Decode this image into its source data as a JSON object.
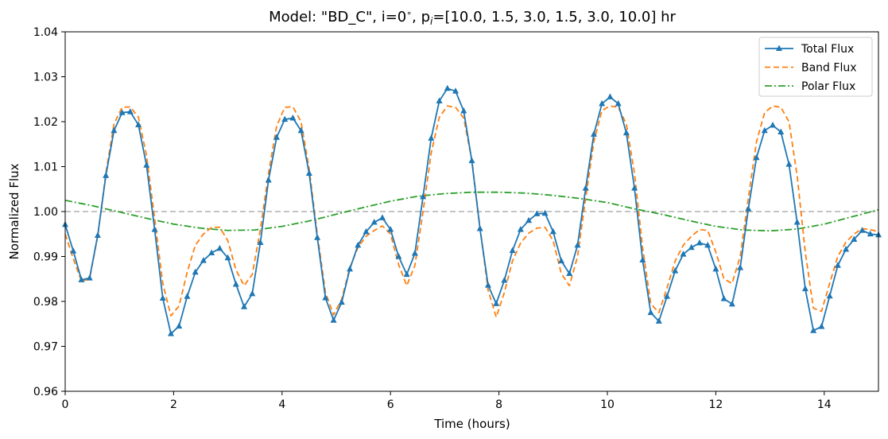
{
  "chart_data": {
    "type": "line",
    "title_parts": {
      "pre": "Model: \"BD_C\", i=0",
      "deg": "∘",
      "mid": ", p",
      "sub": "i",
      "post": "=[10.0, 1.5, 3.0, 1.5, 3.0, 10.0] hr"
    },
    "xlabel": "Time (hours)",
    "ylabel": "Normalized Flux",
    "xlim": [
      0,
      15
    ],
    "ylim": [
      0.96,
      1.04
    ],
    "x_ticks": [
      0,
      2,
      4,
      6,
      8,
      10,
      12,
      14
    ],
    "x_tick_labels": [
      "0",
      "2",
      "4",
      "6",
      "8",
      "10",
      "12",
      "14"
    ],
    "y_ticks": [
      0.96,
      0.97,
      0.98,
      0.99,
      1.0,
      1.01,
      1.02,
      1.03,
      1.04
    ],
    "y_tick_labels": [
      "0.96",
      "0.97",
      "0.98",
      "0.99",
      "1.00",
      "1.01",
      "1.02",
      "1.03",
      "1.04"
    ],
    "grid": false,
    "legend_position": "top-right",
    "reference_line": {
      "y": 1.0,
      "color": "#b0b0b0",
      "style": "dashed"
    },
    "series": [
      {
        "name": "Total Flux",
        "color": "#1f77b4",
        "style": "solid",
        "marker": "triangle",
        "x": [
          0,
          0.15,
          0.3,
          0.45,
          0.6,
          0.75,
          0.9,
          1.05,
          1.2,
          1.35,
          1.5,
          1.65,
          1.8,
          1.95,
          2.1,
          2.25,
          2.4,
          2.55,
          2.7,
          2.85,
          3.0,
          3.15,
          3.3,
          3.45,
          3.6,
          3.75,
          3.9,
          4.05,
          4.2,
          4.35,
          4.5,
          4.65,
          4.8,
          4.95,
          5.1,
          5.25,
          5.4,
          5.55,
          5.7,
          5.85,
          6.0,
          6.15,
          6.3,
          6.45,
          6.6,
          6.75,
          6.9,
          7.05,
          7.2,
          7.35,
          7.5,
          7.65,
          7.8,
          7.95,
          8.1,
          8.25,
          8.4,
          8.55,
          8.7,
          8.85,
          9.0,
          9.15,
          9.3,
          9.45,
          9.6,
          9.75,
          9.9,
          10.05,
          10.2,
          10.35,
          10.5,
          10.65,
          10.8,
          10.95,
          11.1,
          11.25,
          11.4,
          11.55,
          11.7,
          11.85,
          12.0,
          12.15,
          12.3,
          12.45,
          12.6,
          12.75,
          12.9,
          13.05,
          13.2,
          13.35,
          13.5,
          13.65,
          13.8,
          13.95,
          14.1,
          14.25,
          14.4,
          14.55,
          14.7,
          14.85,
          15.0
        ],
        "y": [
          0.9971,
          0.9912,
          0.9848,
          0.9852,
          0.9947,
          1.008,
          1.018,
          1.022,
          1.0222,
          1.0193,
          1.0103,
          0.996,
          0.9807,
          0.9728,
          0.9745,
          0.9811,
          0.9865,
          0.9891,
          0.9908,
          0.9918,
          0.9897,
          0.9838,
          0.9788,
          0.9817,
          0.9931,
          1.007,
          1.0165,
          1.0205,
          1.0208,
          1.018,
          1.0085,
          0.9942,
          0.9808,
          0.9758,
          0.9798,
          0.9872,
          0.9925,
          0.9955,
          0.9976,
          0.9986,
          0.996,
          0.99,
          0.986,
          0.9907,
          1.0033,
          1.0163,
          1.0246,
          1.0274,
          1.0268,
          1.0224,
          1.0113,
          0.9962,
          0.9836,
          0.9795,
          0.9847,
          0.9913,
          0.996,
          0.998,
          0.9995,
          0.9996,
          0.9955,
          0.989,
          0.9862,
          0.9925,
          1.0052,
          1.0172,
          1.024,
          1.0255,
          1.024,
          1.0175,
          1.0052,
          0.9892,
          0.9775,
          0.9756,
          0.9811,
          0.9868,
          0.9905,
          0.992,
          0.993,
          0.9925,
          0.9872,
          0.9806,
          0.9794,
          0.9875,
          1.0006,
          1.012,
          1.018,
          1.0192,
          1.0177,
          1.0105,
          0.9976,
          0.9828,
          0.9735,
          0.9744,
          0.9812,
          0.988,
          0.9916,
          0.9938,
          0.9958,
          0.995,
          0.9948
        ]
      },
      {
        "name": "Band Flux",
        "color": "#ff7f0e",
        "style": "dashed",
        "marker": "none",
        "x": [
          0,
          0.15,
          0.3,
          0.45,
          0.6,
          0.75,
          0.9,
          1.05,
          1.2,
          1.35,
          1.5,
          1.65,
          1.8,
          1.95,
          2.1,
          2.25,
          2.4,
          2.55,
          2.7,
          2.85,
          3.0,
          3.15,
          3.3,
          3.45,
          3.6,
          3.75,
          3.9,
          4.05,
          4.2,
          4.35,
          4.5,
          4.65,
          4.8,
          4.95,
          5.1,
          5.25,
          5.4,
          5.55,
          5.7,
          5.85,
          6.0,
          6.15,
          6.3,
          6.45,
          6.6,
          6.75,
          6.9,
          7.05,
          7.2,
          7.35,
          7.5,
          7.65,
          7.8,
          7.95,
          8.1,
          8.25,
          8.4,
          8.55,
          8.7,
          8.85,
          9.0,
          9.15,
          9.3,
          9.45,
          9.6,
          9.75,
          9.9,
          10.05,
          10.2,
          10.35,
          10.5,
          10.65,
          10.8,
          10.95,
          11.1,
          11.25,
          11.4,
          11.55,
          11.7,
          11.85,
          12.0,
          12.15,
          12.3,
          12.45,
          12.6,
          12.75,
          12.9,
          13.05,
          13.2,
          13.35,
          13.5,
          13.65,
          13.8,
          13.95,
          14.1,
          14.25,
          14.4,
          14.55,
          14.7,
          14.85,
          15.0
        ],
        "y": [
          0.995,
          0.9895,
          0.9845,
          0.985,
          0.9945,
          1.0085,
          1.0195,
          1.0232,
          1.0233,
          1.021,
          1.0125,
          0.9985,
          0.984,
          0.9768,
          0.979,
          0.9865,
          0.9925,
          0.995,
          0.9965,
          0.9965,
          0.9935,
          0.987,
          0.9835,
          0.986,
          0.996,
          1.0085,
          1.019,
          1.0232,
          1.0233,
          1.02,
          1.0095,
          0.995,
          0.982,
          0.977,
          0.9805,
          0.9875,
          0.992,
          0.9945,
          0.9958,
          0.9968,
          0.995,
          0.9882,
          0.9835,
          0.988,
          1.0,
          1.013,
          1.021,
          1.0235,
          1.0232,
          1.0208,
          1.0115,
          0.9965,
          0.9825,
          0.9765,
          0.982,
          0.989,
          0.993,
          0.9952,
          0.9963,
          0.9965,
          0.9935,
          0.9862,
          0.9835,
          0.99,
          1.003,
          1.0155,
          1.0225,
          1.0235,
          1.0232,
          1.0195,
          1.0085,
          0.992,
          0.9795,
          0.9775,
          0.983,
          0.989,
          0.9925,
          0.9945,
          0.996,
          0.9958,
          0.991,
          0.985,
          0.984,
          0.99,
          1.003,
          1.0155,
          1.022,
          1.0235,
          1.0232,
          1.02,
          1.008,
          0.991,
          0.9785,
          0.9778,
          0.984,
          0.99,
          0.9932,
          0.995,
          0.9962,
          0.996,
          0.9955
        ]
      },
      {
        "name": "Polar Flux",
        "color": "#2ca02c",
        "style": "dashdot",
        "marker": "none",
        "x": [
          0,
          0.5,
          1.0,
          1.5,
          2.0,
          2.5,
          3.0,
          3.5,
          4.0,
          4.5,
          5.0,
          5.5,
          6.0,
          6.5,
          7.0,
          7.5,
          8.0,
          8.5,
          9.0,
          9.5,
          10.0,
          10.5,
          11.0,
          11.5,
          12.0,
          12.5,
          13.0,
          13.5,
          14.0,
          14.5,
          15.0
        ],
        "y": [
          1.0025,
          1.0013,
          0.9999,
          0.9985,
          0.9972,
          0.9963,
          0.9958,
          0.9959,
          0.9967,
          0.9979,
          0.9994,
          1.0009,
          1.0023,
          1.0034,
          1.004,
          1.0043,
          1.0043,
          1.0041,
          1.0036,
          1.0029,
          1.002,
          1.0006,
          0.9994,
          0.998,
          0.9967,
          0.9959,
          0.9957,
          0.9961,
          0.9972,
          0.9988,
          1.0004
        ]
      }
    ]
  }
}
